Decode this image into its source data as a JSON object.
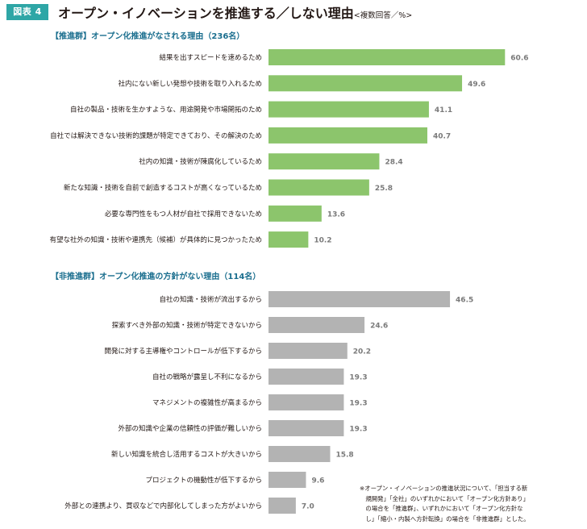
{
  "figure": {
    "badge": "図表 4",
    "title": "オープン・イノベーションを推進する／しない理由",
    "title_suffix": "<複数回答／%>"
  },
  "colors": {
    "badge": "#2ea6a6",
    "promote_bars": "#8cc56c",
    "non_promote_bars": "#b3b3b3",
    "value_text": "#7a7a7a",
    "section_heading": "#1a6e8e"
  },
  "chart_data": [
    {
      "type": "bar",
      "orientation": "horizontal",
      "title": "【推進群】オープン化推進がなされる理由（236名）",
      "categories": [
        "結果を出すスピードを速めるため",
        "社内にない新しい発想や技術を取り入れるため",
        "自社の製品・技術を生かすような、用途開発や市場開拓のため",
        "自社では解決できない技術的課題が特定できており、その解決のため",
        "社内の知識・技術が陳腐化しているため",
        "新たな知識・技術を自前で創造するコストが高くなっているため",
        "必要な専門性をもつ人材が自社で採用できないため",
        "有望な社外の知識・技術や連携先（候補）が具体的に見つかったため"
      ],
      "values": [
        60.6,
        49.6,
        41.1,
        40.7,
        28.4,
        25.8,
        13.6,
        10.2
      ],
      "value_labels": [
        "60.6",
        "49.6",
        "41.1",
        "40.7",
        "28.4",
        "25.8",
        "13.6",
        "10.2"
      ],
      "color": "#8cc56c"
    },
    {
      "type": "bar",
      "orientation": "horizontal",
      "title": "【非推進群】オープン化推進の方針がない理由（114名）",
      "categories": [
        "自社の知識・技術が流出するから",
        "探索すべき外部の知識・技術が特定できないから",
        "開発に対する主導権やコントロールが低下するから",
        "自社の戦略が露呈し不利になるから",
        "マネジメントの複雑性が高まるから",
        "外部の知識や企業の信頼性の評価が難しいから",
        "新しい知識を統合し活用するコストが大きいから",
        "プロジェクトの機動性が低下するから",
        "外部との連携より、買収などで内部化してしまった方がよいから"
      ],
      "values": [
        46.5,
        24.6,
        20.2,
        19.3,
        19.3,
        19.3,
        15.8,
        9.6,
        7.0
      ],
      "value_labels": [
        "46.5",
        "24.6",
        "20.2",
        "19.3",
        "19.3",
        "19.3",
        "15.8",
        "9.6",
        "7.0"
      ],
      "color": "#b3b3b3"
    }
  ],
  "note": [
    "※オープン・イノベーションの推進状況について、「担当する新",
    "　規開発」「全社」のいずれかにおいて「オープン化方針あり」",
    "　の場合を「推進群」、いずれかにおいて「オープン化方針な",
    "　し」「縮小・内製へ方針転換」の場合を「非推進群」とした。"
  ]
}
